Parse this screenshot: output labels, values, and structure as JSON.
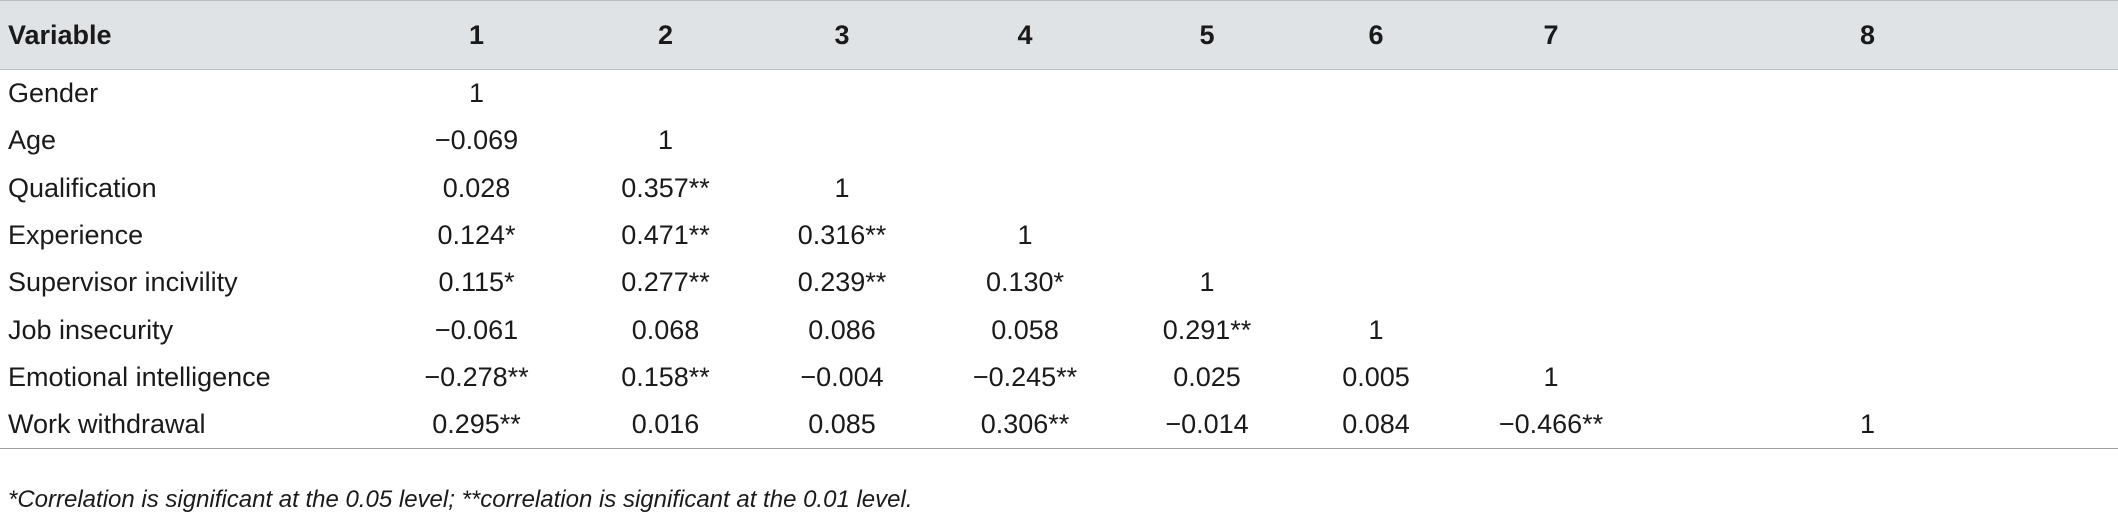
{
  "table": {
    "headers": [
      "Variable",
      "1",
      "2",
      "3",
      "4",
      "5",
      "6",
      "7",
      "8"
    ],
    "rows": [
      {
        "label": "Gender",
        "cells": [
          "1",
          "",
          "",
          "",
          "",
          "",
          "",
          ""
        ]
      },
      {
        "label": "Age",
        "cells": [
          "−0.069",
          "1",
          "",
          "",
          "",
          "",
          "",
          ""
        ]
      },
      {
        "label": "Qualification",
        "cells": [
          "0.028",
          "0.357**",
          "1",
          "",
          "",
          "",
          "",
          ""
        ]
      },
      {
        "label": "Experience",
        "cells": [
          "0.124*",
          "0.471**",
          "0.316**",
          "1",
          "",
          "",
          "",
          ""
        ]
      },
      {
        "label": "Supervisor incivility",
        "cells": [
          "0.115*",
          "0.277**",
          "0.239**",
          "0.130*",
          "1",
          "",
          "",
          ""
        ]
      },
      {
        "label": "Job insecurity",
        "cells": [
          "−0.061",
          "0.068",
          "0.086",
          "0.058",
          "0.291**",
          "1",
          "",
          ""
        ]
      },
      {
        "label": "Emotional intelligence",
        "cells": [
          "−0.278**",
          "0.158**",
          "−0.004",
          "−0.245**",
          "0.025",
          "0.005",
          "1",
          ""
        ]
      },
      {
        "label": "Work withdrawal",
        "cells": [
          "0.295**",
          "0.016",
          "0.085",
          "0.306**",
          "−0.014",
          "0.084",
          "−0.466**",
          "1"
        ]
      }
    ]
  },
  "footnote": "*Correlation is significant at the 0.05 level; **correlation is significant at the 0.01 level.",
  "colors": {
    "header_background": "#dfe3e6",
    "text": "#1a1a1a",
    "rule": "#b9bec2"
  }
}
